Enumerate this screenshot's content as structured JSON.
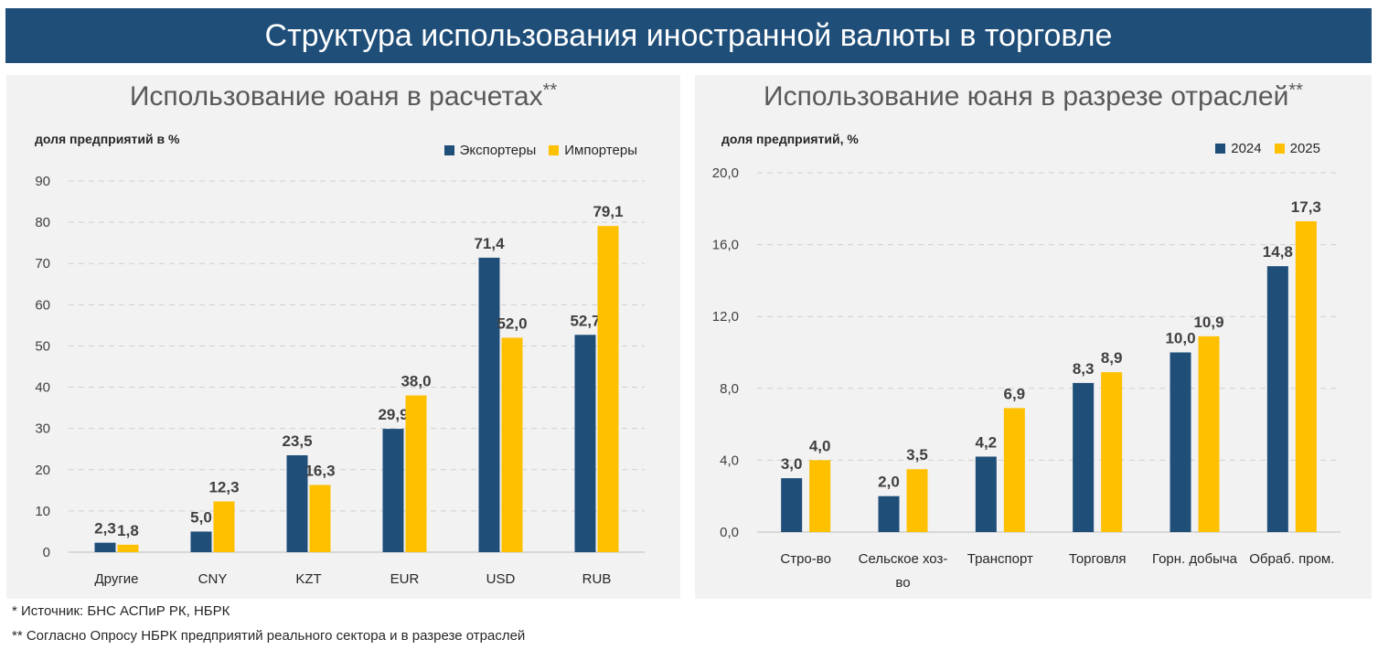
{
  "page_title": "Структура использования иностранной валюты в торговле",
  "footnotes": {
    "source": "* Источник: БНС АСПиР РК, НБРК",
    "survey": "** Согласно Опросу НБРК предприятий реального сектора и в разрезе отраслей"
  },
  "colors": {
    "series1": "#1f4e79",
    "series2": "#ffc000",
    "banner": "#1f4e79",
    "panel": "#f2f2f2"
  },
  "chart_data": [
    {
      "type": "bar",
      "title": "Использование юаня в расчетах",
      "title_mark": "**",
      "ylabel": "доля предприятий в %",
      "xlabel": "",
      "categories": [
        "Другие",
        "CNY",
        "KZT",
        "EUR",
        "USD",
        "RUB"
      ],
      "series": [
        {
          "name": "Экспортеры",
          "values": [
            2.3,
            5.0,
            23.5,
            29.9,
            71.4,
            52.7
          ],
          "labels": [
            "2,3",
            "5,0",
            "23,5",
            "29,9",
            "71,4",
            "52,7"
          ]
        },
        {
          "name": "Импортеры",
          "values": [
            1.8,
            12.3,
            16.3,
            38.0,
            52.0,
            79.1
          ],
          "labels": [
            "1,8",
            "12,3",
            "16,3",
            "38,0",
            "52,0",
            "79,1"
          ]
        }
      ],
      "ylim": [
        0,
        90
      ],
      "yticks": [
        0,
        10,
        20,
        30,
        40,
        50,
        60,
        70,
        80,
        90
      ],
      "ytick_labels": [
        "0",
        "10",
        "20",
        "30",
        "40",
        "50",
        "60",
        "70",
        "80",
        "90"
      ],
      "grid": true,
      "legend_position": "top-right"
    },
    {
      "type": "bar",
      "title": "Использование юаня в разрезе отраслей",
      "title_mark": "**",
      "ylabel": "доля предприятий, %",
      "xlabel": "",
      "categories": [
        "Стро-во",
        "Сельское хоз-во",
        "Транспорт",
        "Торговля",
        "Горн. добыча",
        "Обраб. пром."
      ],
      "series": [
        {
          "name": "2024",
          "values": [
            3.0,
            2.0,
            4.2,
            8.3,
            10.0,
            14.8
          ],
          "labels": [
            "3,0",
            "2,0",
            "4,2",
            "8,3",
            "10,0",
            "14,8"
          ]
        },
        {
          "name": "2025",
          "values": [
            4.0,
            3.5,
            6.9,
            8.9,
            10.9,
            17.3
          ],
          "labels": [
            "4,0",
            "3,5",
            "6,9",
            "8,9",
            "10,9",
            "17,3"
          ]
        }
      ],
      "ylim": [
        0,
        20
      ],
      "yticks": [
        0,
        4,
        8,
        12,
        16,
        20
      ],
      "ytick_labels": [
        "0,0",
        "4,0",
        "8,0",
        "12,0",
        "16,0",
        "20,0"
      ],
      "grid": true,
      "legend_position": "top-right"
    }
  ]
}
